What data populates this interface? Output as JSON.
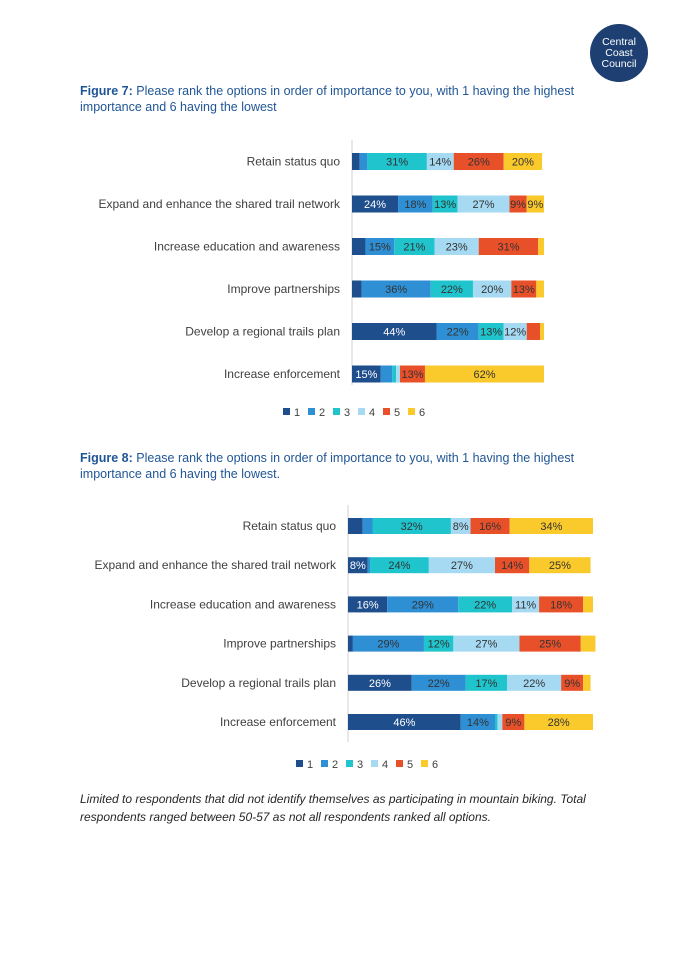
{
  "logo": {
    "lines": [
      "Central",
      "Coast",
      "Council"
    ]
  },
  "figure7": {
    "label": "Figure 7:",
    "caption": "Please rank the options in order of importance to you, with 1 having the highest importance and 6 having the lowest"
  },
  "figure8": {
    "label": "Figure 8:",
    "caption": "Please rank the options in order of importance to you, with 1 having the highest importance and 6 having the lowest."
  },
  "footnote": "Limited to respondents that did not identify themselves as participating in mountain biking. Total respondents ranged between 50-57 as not all respondents ranked all options.",
  "colors": {
    "rank1": "#1f4e8c",
    "rank2": "#2e8fd4",
    "rank3": "#1fc4cc",
    "rank4": "#a6d9f2",
    "rank5": "#e8502a",
    "rank6": "#fac92c"
  },
  "chart_data": [
    {
      "type": "bar",
      "orientation": "horizontal",
      "stacked": true,
      "title": "Figure 7",
      "categories": [
        "Retain status quo",
        "Expand and enhance the shared trail network",
        "Increase education and awareness",
        "Improve partnerships",
        "Develop a regional trails plan",
        "Increase enforcement"
      ],
      "series": [
        {
          "name": "1",
          "values": [
            4,
            24,
            7,
            5,
            44,
            15
          ],
          "labels": [
            "",
            "24%",
            "",
            "",
            "44%",
            "15%"
          ]
        },
        {
          "name": "2",
          "values": [
            4,
            18,
            15,
            36,
            22,
            6
          ],
          "labels": [
            "",
            "18%",
            "15%",
            "36%",
            "22%",
            ""
          ]
        },
        {
          "name": "3",
          "values": [
            31,
            13,
            21,
            22,
            13,
            2
          ],
          "labels": [
            "31%",
            "13%",
            "21%",
            "22%",
            "13%",
            ""
          ]
        },
        {
          "name": "4",
          "values": [
            14,
            27,
            23,
            20,
            12,
            2
          ],
          "labels": [
            "14%",
            "27%",
            "23%",
            "20%",
            "12%",
            ""
          ]
        },
        {
          "name": "5",
          "values": [
            26,
            9,
            31,
            13,
            7,
            13
          ],
          "labels": [
            "26%",
            "9%",
            "31%",
            "13%",
            "",
            "13%"
          ]
        },
        {
          "name": "6",
          "values": [
            20,
            9,
            3,
            4,
            2,
            62
          ],
          "labels": [
            "20%",
            "9%",
            "",
            "",
            "",
            "62%"
          ]
        }
      ],
      "legend": [
        "1",
        "2",
        "3",
        "4",
        "5",
        "6"
      ],
      "legend_position": "bottom",
      "xlim": [
        0,
        100
      ]
    },
    {
      "type": "bar",
      "orientation": "horizontal",
      "stacked": true,
      "title": "Figure 8",
      "categories": [
        "Retain status quo",
        "Expand and enhance the shared trail network",
        "Increase education and awareness",
        "Improve partnerships",
        "Develop a regional trails plan",
        "Increase enforcement"
      ],
      "series": [
        {
          "name": "1",
          "values": [
            6,
            8,
            16,
            2,
            26,
            46
          ],
          "labels": [
            "",
            "8%",
            "16%",
            "",
            "26%",
            "46%"
          ]
        },
        {
          "name": "2",
          "values": [
            4,
            1,
            29,
            29,
            22,
            14
          ],
          "labels": [
            "",
            "",
            "29%",
            "29%",
            "22%",
            "14%"
          ]
        },
        {
          "name": "3",
          "values": [
            32,
            24,
            22,
            12,
            17,
            1
          ],
          "labels": [
            "32%",
            "24%",
            "22%",
            "12%",
            "17%",
            ""
          ]
        },
        {
          "name": "4",
          "values": [
            8,
            27,
            11,
            27,
            22,
            2
          ],
          "labels": [
            "8%",
            "27%",
            "11%",
            "27%",
            "22%",
            ""
          ]
        },
        {
          "name": "5",
          "values": [
            16,
            14,
            18,
            25,
            9,
            9
          ],
          "labels": [
            "16%",
            "14%",
            "18%",
            "25%",
            "9%",
            "9%"
          ]
        },
        {
          "name": "6",
          "values": [
            34,
            25,
            4,
            6,
            3,
            28
          ],
          "labels": [
            "34%",
            "25%",
            "",
            "",
            "",
            "28%"
          ]
        }
      ],
      "legend": [
        "1",
        "2",
        "3",
        "4",
        "5",
        "6"
      ],
      "legend_position": "bottom",
      "xlim": [
        0,
        100
      ]
    }
  ]
}
